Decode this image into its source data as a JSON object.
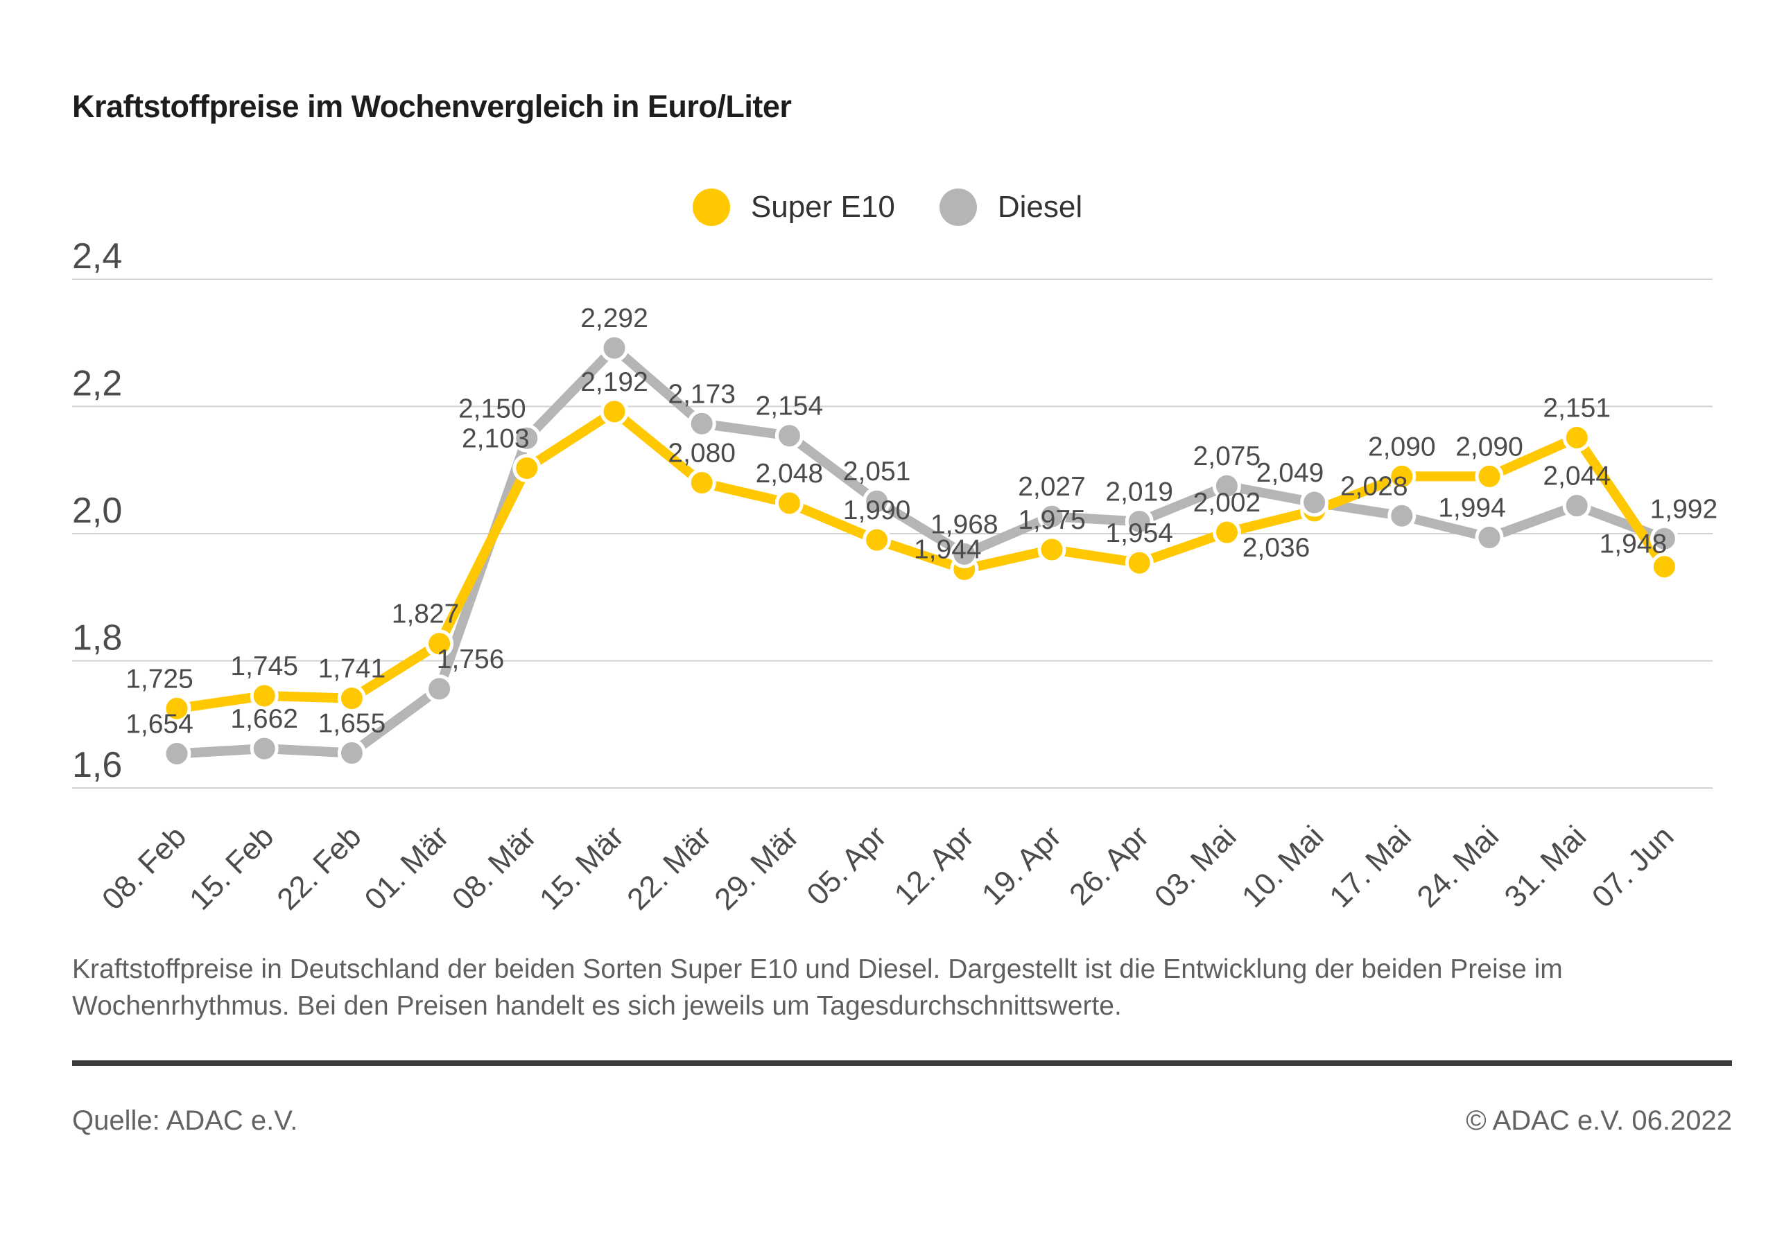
{
  "page": {
    "title": "Kraftstoffpreise im Wochenvergleich in Euro/Liter",
    "caption": "Kraftstoffpreise in Deutschland der beiden Sorten Super E10 und Diesel. Dargestellt ist die Entwicklung der beiden Preise im Wochenrhythmus. Bei den Preisen handelt es sich jeweils um Tagesdurchschnittswerte.",
    "footer": {
      "source": "Quelle: ADAC e.V.",
      "copyright": "© ADAC e.V. 06.2022"
    }
  },
  "colors": {
    "super_e10": "#FFC800",
    "diesel": "#B5B5B5",
    "grid": "#D2D2D2",
    "tick_text": "#4b4b4b",
    "value_label_text": "#4b4b4b",
    "title_text": "#1d1d1b",
    "separator": "#3c3c3c"
  },
  "chart_data": {
    "type": "line",
    "title": "Kraftstoffpreise im Wochenvergleich in Euro/Liter",
    "unit": "Euro/Liter",
    "categories": [
      "08. Feb",
      "15. Feb",
      "22. Feb",
      "01. Mär",
      "08. Mär",
      "15. Mär",
      "22. Mär",
      "29. Mär",
      "05. Apr",
      "12. Apr",
      "19. Apr",
      "26. Apr",
      "03. Mai",
      "10. Mai",
      "17. Mai",
      "24. Mai",
      "31. Mai",
      "07. Jun"
    ],
    "series": [
      {
        "name": "Super E10",
        "color": "#FFC800",
        "values": [
          1.725,
          1.745,
          1.741,
          1.827,
          2.103,
          2.192,
          2.08,
          2.048,
          1.99,
          1.944,
          1.975,
          1.954,
          2.002,
          2.036,
          2.09,
          2.09,
          2.151,
          1.948
        ],
        "value_labels": [
          "1,725",
          "1,745",
          "1,741",
          "1,827",
          "2,103",
          "2,192",
          "2,080",
          "2,048",
          "1,990",
          "1,944",
          "1,975",
          "1,954",
          "2,002",
          "2,036",
          "2,090",
          "2,090",
          "2,151",
          "1,948"
        ]
      },
      {
        "name": "Diesel",
        "color": "#B5B5B5",
        "values": [
          1.654,
          1.662,
          1.655,
          1.756,
          2.15,
          2.292,
          2.173,
          2.154,
          2.051,
          1.968,
          2.027,
          2.019,
          2.075,
          2.049,
          2.028,
          1.994,
          2.044,
          1.992
        ],
        "value_labels": [
          "1,654",
          "1,662",
          "1,655",
          "1,756",
          "2,150",
          "2,292",
          "2,173",
          "2,154",
          "2,051",
          "1,968",
          "2,027",
          "2,019",
          "2,075",
          "2,049",
          "2,028",
          "1,994",
          "2,044",
          "1,992"
        ]
      }
    ],
    "ylim": [
      1.6,
      2.4
    ],
    "yticks": {
      "values": [
        2.4,
        2.2,
        2.0,
        1.8,
        1.6
      ],
      "labels": [
        "2,4",
        "2,2",
        "2,0",
        "1,8",
        "1,6"
      ]
    },
    "grid": true,
    "legend_position": "top-center",
    "point_labels_visible": true
  }
}
